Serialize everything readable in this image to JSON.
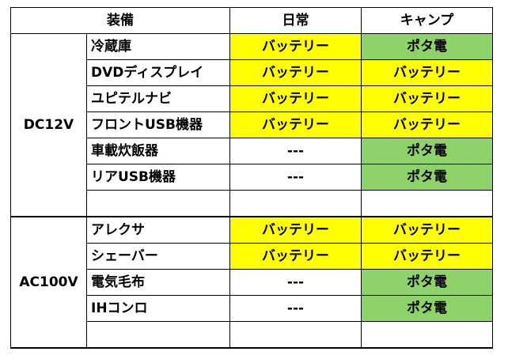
{
  "header": {
    "equipment": "装備",
    "daily": "日常",
    "camp": "キャンプ"
  },
  "colors": {
    "battery": "#ffff00",
    "portable_power": "#8ed36a"
  },
  "groups": [
    {
      "name": "DC12V",
      "rows": [
        {
          "item": "冷蔵庫",
          "daily": "バッテリー",
          "camp": "ポタ電"
        },
        {
          "item": "DVDディスプレイ",
          "daily": "バッテリー",
          "camp": "バッテリー"
        },
        {
          "item": "ユピテルナビ",
          "daily": "バッテリー",
          "camp": "バッテリー"
        },
        {
          "item": "フロントUSB機器",
          "daily": "バッテリー",
          "camp": "バッテリー"
        },
        {
          "item": "車載炊飯器",
          "daily": "---",
          "camp": "ポタ電"
        },
        {
          "item": "リアUSB機器",
          "daily": "---",
          "camp": "ポタ電"
        },
        {
          "item": "",
          "daily": "",
          "camp": ""
        }
      ]
    },
    {
      "name": "AC100V",
      "rows": [
        {
          "item": "アレクサ",
          "daily": "バッテリー",
          "camp": "バッテリー"
        },
        {
          "item": "シェーバー",
          "daily": "バッテリー",
          "camp": "バッテリー"
        },
        {
          "item": "電気毛布",
          "daily": "---",
          "camp": "ポタ電"
        },
        {
          "item": "IHコンロ",
          "daily": "---",
          "camp": "ポタ電"
        },
        {
          "item": "",
          "daily": "",
          "camp": ""
        }
      ]
    }
  ]
}
